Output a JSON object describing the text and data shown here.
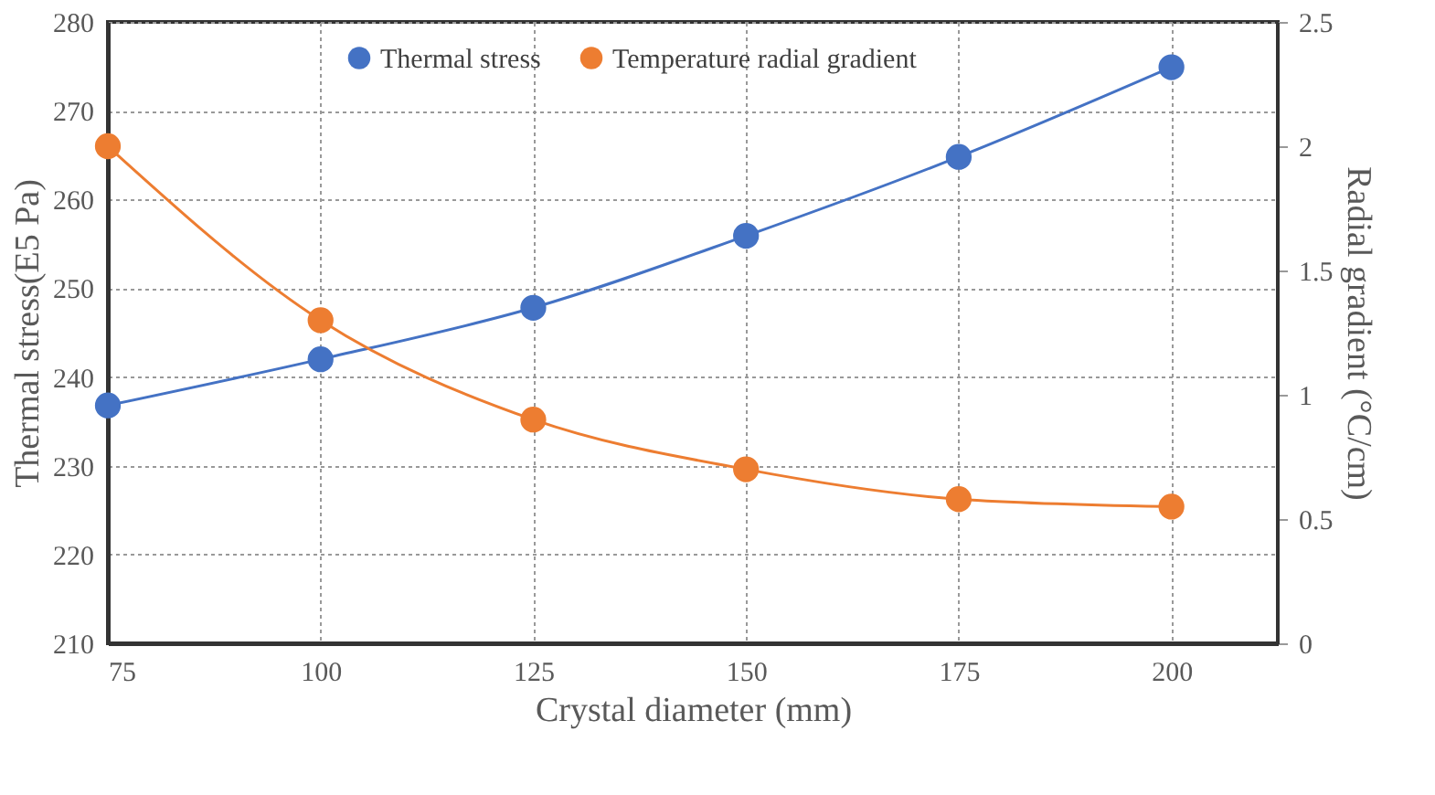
{
  "chart_data": {
    "type": "line",
    "xlabel": "Crystal diameter (mm)",
    "ylabel": "Thermal stress(E5 Pa)",
    "y2label": "Radial gradient (°C/cm)",
    "x": [
      75,
      100,
      125,
      150,
      175,
      200
    ],
    "series": [
      {
        "name": "Thermal stress",
        "color": "#4472c4",
        "values": [
          236.8,
          242.0,
          247.8,
          255.9,
          264.8,
          274.9
        ]
      },
      {
        "name": "Temperature radial gradient",
        "color": "#ed7d31",
        "axis": "y2",
        "values": [
          2.0,
          1.3,
          0.9,
          0.7,
          0.58,
          0.55
        ]
      }
    ],
    "xlim": [
      75,
      212.5
    ],
    "xticks": [
      75,
      100,
      125,
      150,
      175,
      200
    ],
    "ylim": [
      210,
      280
    ],
    "yticks": [
      210,
      220,
      230,
      240,
      250,
      260,
      270,
      280
    ],
    "y2lim": [
      0,
      2.5
    ],
    "y2ticks": [
      0,
      0.5,
      1,
      1.5,
      2,
      2.5
    ],
    "grid": true,
    "legend": "top",
    "marker": "circle",
    "line_style": "solid"
  }
}
